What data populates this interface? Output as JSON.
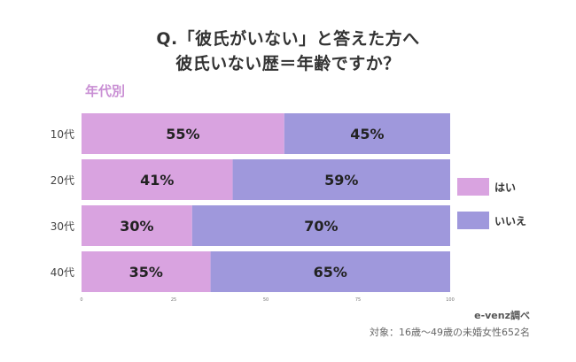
{
  "title": {
    "line1": "Q.「彼氏がいない」と答えた方へ",
    "line2": "彼氏いない歴＝年齢ですか？"
  },
  "subtitle": "年代別",
  "colors": {
    "yes": "#d9a3e0",
    "no": "#9f98dc",
    "subtitle": "#c98fd4"
  },
  "legend": {
    "items": [
      {
        "label": "はい",
        "color": "#d9a3e0"
      },
      {
        "label": "いいえ",
        "color": "#9f98dc"
      }
    ]
  },
  "credit": {
    "brand": "e-venz調べ",
    "target": "対象：16歳〜49歳の未婚女性652名"
  },
  "chart_data": {
    "type": "bar",
    "orientation": "horizontal",
    "stacked": true,
    "categories": [
      "10代",
      "20代",
      "30代",
      "40代"
    ],
    "series": [
      {
        "name": "はい",
        "values": [
          55,
          41,
          30,
          35
        ]
      },
      {
        "name": "いいえ",
        "values": [
          45,
          59,
          70,
          65
        ]
      }
    ],
    "data_labels": [
      [
        "55%",
        "41%",
        "30%",
        "35%"
      ],
      [
        "45%",
        "59%",
        "70%",
        "65%"
      ]
    ],
    "xlim": [
      0,
      100
    ],
    "xticks": [
      "0",
      "25",
      "50",
      "75",
      "100"
    ],
    "grid": false,
    "legend_position": "right"
  }
}
